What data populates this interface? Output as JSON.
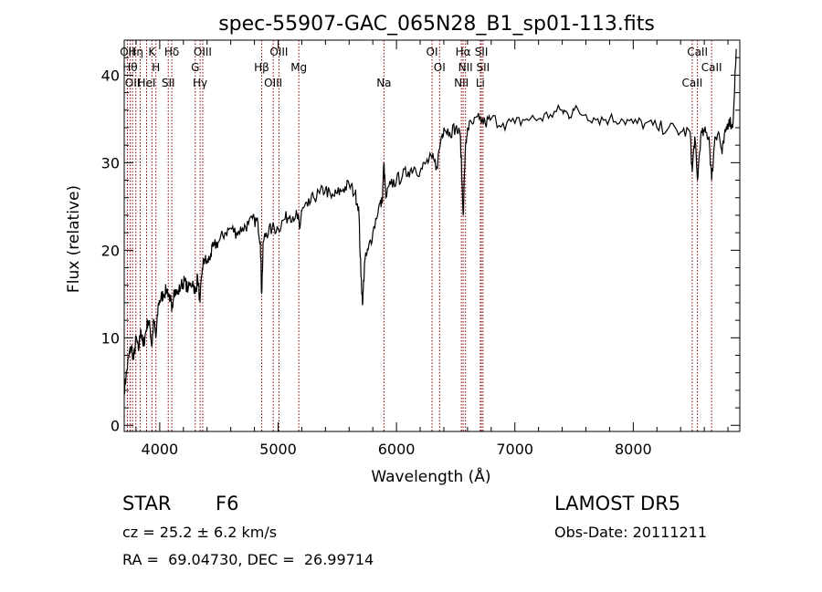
{
  "chart_data": {
    "type": "line",
    "title": "spec-55907-GAC_065N28_B1_sp01-113.fits",
    "xlabel": "Wavelength (Å)",
    "ylabel": "Flux (relative)",
    "xlim": [
      3700,
      8900
    ],
    "ylim": [
      -0.7,
      44
    ],
    "xticks": [
      4000,
      5000,
      6000,
      7000,
      8000
    ],
    "yticks": [
      0,
      10,
      20,
      30,
      40
    ],
    "grid": false,
    "series": [
      {
        "values_x": [
          3700,
          3720,
          3740,
          3760,
          3780,
          3800,
          3820,
          3840,
          3860,
          3880,
          3900,
          3920,
          3933,
          3950,
          3968,
          3990,
          4010,
          4030,
          4060,
          4090,
          4101,
          4120,
          4150,
          4180,
          4210,
          4240,
          4280,
          4300,
          4320,
          4340,
          4360,
          4380,
          4400,
          4430,
          4460,
          4500,
          4550,
          4600,
          4650,
          4700,
          4750,
          4800,
          4830,
          4850,
          4861,
          4875,
          4900,
          4950,
          5000,
          5050,
          5100,
          5150,
          5170,
          5183,
          5200,
          5250,
          5300,
          5350,
          5400,
          5450,
          5500,
          5550,
          5600,
          5650,
          5680,
          5700,
          5715,
          5730,
          5760,
          5800,
          5850,
          5880,
          5893,
          5910,
          5950,
          6000,
          6050,
          6100,
          6150,
          6200,
          6250,
          6300,
          6340,
          6380,
          6400,
          6450,
          6500,
          6540,
          6563,
          6580,
          6600,
          6650,
          6700,
          6750,
          6800,
          6900,
          7000,
          7100,
          7200,
          7300,
          7400,
          7450,
          7500,
          7600,
          7700,
          7800,
          7900,
          8000,
          8100,
          8200,
          8300,
          8400,
          8480,
          8498,
          8520,
          8542,
          8570,
          8600,
          8640,
          8662,
          8690,
          8720,
          8750,
          8780,
          8810,
          8840,
          8870
        ],
        "values": [
          4,
          6,
          8,
          9,
          7.5,
          10,
          8.5,
          11,
          9,
          10.5,
          12,
          11,
          9,
          12,
          10,
          14,
          14.5,
          15,
          15.5,
          14.5,
          13,
          15.5,
          15,
          16,
          16.5,
          15.5,
          16.5,
          15,
          17,
          14,
          18,
          19,
          18.5,
          19.5,
          20.5,
          21,
          22,
          22.5,
          22,
          22.5,
          23,
          23.5,
          23,
          21,
          15,
          21,
          22,
          22.5,
          22.5,
          23.5,
          24,
          24,
          23.5,
          22.5,
          24.5,
          25,
          26,
          26.5,
          27,
          26,
          26.5,
          27,
          27.5,
          26.5,
          25,
          17,
          14,
          18.5,
          20,
          22,
          25,
          25.5,
          30,
          26,
          27.5,
          28,
          28.5,
          29,
          29.5,
          29,
          30,
          30.5,
          29.5,
          33,
          34,
          33.5,
          34,
          33,
          24,
          31,
          34,
          34.5,
          35,
          34.5,
          35,
          34.5,
          34.5,
          35,
          35,
          35.5,
          36,
          35.5,
          36,
          35.5,
          35,
          35,
          35,
          34.5,
          34.5,
          34,
          34,
          33.5,
          33.5,
          29,
          33,
          28,
          33,
          33.5,
          33,
          28,
          33,
          33.5,
          31,
          33.5,
          35,
          34,
          43
        ]
      }
    ],
    "lines": [
      {
        "x": 3727,
        "label": "OII"
      },
      {
        "x": 3750,
        "label": "Hθ"
      },
      {
        "x": 3770,
        "label": "OII"
      },
      {
        "x": 3798,
        "label": "Hη"
      },
      {
        "x": 3835,
        "label": ""
      },
      {
        "x": 3889,
        "label": "HeI"
      },
      {
        "x": 3934,
        "label": "K"
      },
      {
        "x": 3968,
        "label": "H"
      },
      {
        "x": 4072,
        "label": "SII"
      },
      {
        "x": 4102,
        "label": "Hδ"
      },
      {
        "x": 4300,
        "label": "G"
      },
      {
        "x": 4341,
        "label": "Hγ"
      },
      {
        "x": 4363,
        "label": "OIII"
      },
      {
        "x": 4861,
        "label": "Hβ"
      },
      {
        "x": 4959,
        "label": "OIII"
      },
      {
        "x": 5007,
        "label": "OIII"
      },
      {
        "x": 5175,
        "label": "Mg"
      },
      {
        "x": 5894,
        "label": "Na"
      },
      {
        "x": 6300,
        "label": "OI"
      },
      {
        "x": 6364,
        "label": "OI"
      },
      {
        "x": 6548,
        "label": "NII"
      },
      {
        "x": 6563,
        "label": "Hα"
      },
      {
        "x": 6583,
        "label": "NII"
      },
      {
        "x": 6708,
        "label": "Li"
      },
      {
        "x": 6717,
        "label": "SII"
      },
      {
        "x": 6731,
        "label": "SII"
      },
      {
        "x": 8498,
        "label": "CaII"
      },
      {
        "x": 8542,
        "label": "CaII"
      },
      {
        "x": 8662,
        "label": "CaII"
      }
    ],
    "line_color": "#8b0000",
    "spectrum_color": "#000000"
  },
  "info": {
    "class_label": "STAR",
    "subclass": "F6",
    "survey": "LAMOST DR5",
    "cz": "cz = 25.2 ± 6.2 km/s",
    "obs_date": "Obs-Date: 20111211",
    "coords": "RA =  69.04730, DEC =  26.99714"
  }
}
